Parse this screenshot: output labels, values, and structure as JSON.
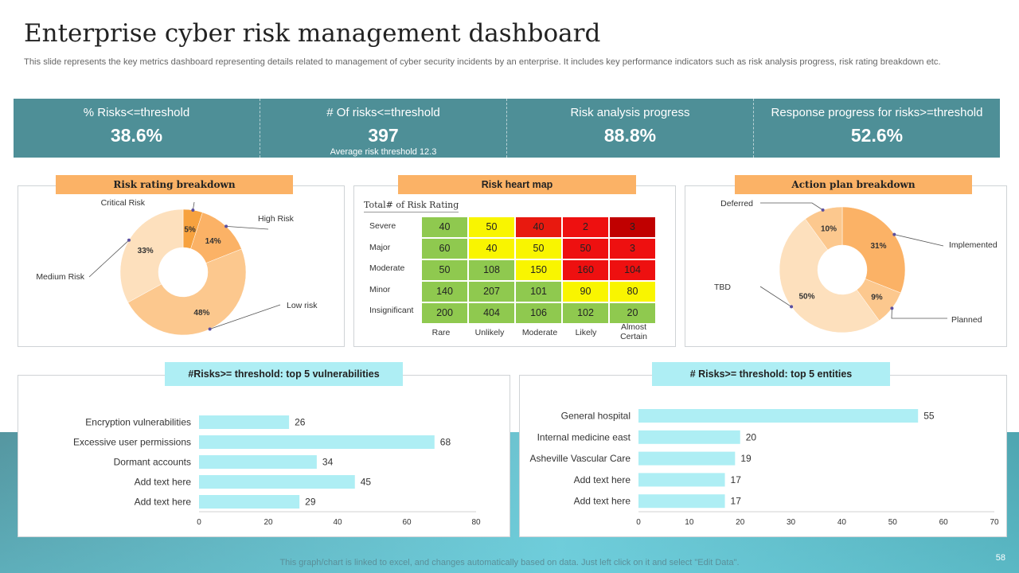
{
  "title": "Enterprise cyber risk management dashboard",
  "subtitle": "This slide represents the key metrics dashboard representing details related to management of cyber security incidents by an enterprise. It includes key performance indicators such as risk analysis progress, risk rating breakdown etc.",
  "kpis": [
    {
      "label": "% Risks<=threshold",
      "value": "38.6%",
      "note": ""
    },
    {
      "label": "# Of risks<=threshold",
      "value": "397",
      "note": "Average risk threshold 12.3"
    },
    {
      "label": "Risk analysis progress",
      "value": "88.8%",
      "note": ""
    },
    {
      "label": "Response progress for risks>=threshold",
      "value": "52.6%",
      "note": ""
    }
  ],
  "panels": {
    "risk_rating": "Risk rating breakdown",
    "heat_map": "Risk heart map",
    "action_plan": "Action plan breakdown",
    "vulnerabilities": "#Risks>= threshold: top 5 vulnerabilities",
    "entities": "# Risks>=  threshold: top 5 entities"
  },
  "footer_note": "This graph/chart is linked to excel,  and changes automatically based on data. Just left click on it and select \"Edit Data\".",
  "page_number": "58",
  "colors": {
    "kpi_bg": "#4e8f97",
    "orange_tag": "#fbb266",
    "cyan_tag": "#aeeef4",
    "bar": "#aeeef4"
  },
  "chart_data": [
    {
      "type": "pie",
      "variant": "donut",
      "labels": [
        "Critical Risk",
        "High Risk",
        "Low risk",
        "Medium Risk"
      ],
      "values": [
        5,
        14,
        48,
        33
      ],
      "value_labels": [
        "5%",
        "14%",
        "48%",
        "33%"
      ],
      "colors": [
        "#f7a23f",
        "#fbb266",
        "#fcc88e",
        "#fde0bd"
      ]
    },
    {
      "type": "heatmap",
      "title": "Total# of Risk Rating",
      "rows": [
        "Severe",
        "Major",
        "Moderate",
        "Minor",
        "Insignificant"
      ],
      "columns": [
        "Rare",
        "Unlikely",
        "Moderate",
        "Likely",
        "Almost Certain"
      ],
      "values": [
        [
          40,
          50,
          40,
          2,
          3
        ],
        [
          60,
          40,
          50,
          50,
          3
        ],
        [
          50,
          108,
          150,
          160,
          104
        ],
        [
          140,
          207,
          101,
          90,
          80
        ],
        [
          200,
          404,
          106,
          102,
          20
        ]
      ],
      "cell_colors": [
        [
          "#8fc94f",
          "#f9f500",
          "#e8190f",
          "#ee1010",
          "#c00000"
        ],
        [
          "#8fc94f",
          "#f9f500",
          "#f9f500",
          "#ee1010",
          "#ee1010"
        ],
        [
          "#8fc94f",
          "#8fc94f",
          "#f9f500",
          "#ee1010",
          "#ee1010"
        ],
        [
          "#8fc94f",
          "#8fc94f",
          "#8fc94f",
          "#f9f500",
          "#f9f500"
        ],
        [
          "#8fc94f",
          "#8fc94f",
          "#8fc94f",
          "#8fc94f",
          "#8fc94f"
        ]
      ]
    },
    {
      "type": "pie",
      "variant": "donut",
      "labels": [
        "Implemented",
        "Planned",
        "TBD",
        "Deferred"
      ],
      "values": [
        31,
        9,
        50,
        10
      ],
      "value_labels": [
        "31%",
        "9%",
        "50%",
        "10%"
      ],
      "colors": [
        "#fbb266",
        "#fcc88e",
        "#fde0bd",
        "#fcc88e"
      ]
    },
    {
      "type": "bar",
      "orientation": "horizontal",
      "categories": [
        "Encryption vulnerabilities",
        "Excessive user permissions",
        "Dormant accounts",
        "Add text here",
        "Add text here"
      ],
      "values": [
        26,
        68,
        34,
        45,
        29
      ],
      "xlim": [
        0,
        80
      ],
      "ticks": [
        0,
        20,
        40,
        60,
        80
      ]
    },
    {
      "type": "bar",
      "orientation": "horizontal",
      "categories": [
        "General hospital",
        "Internal medicine east",
        "Asheville Vascular Care",
        "Add text here",
        "Add text here"
      ],
      "values": [
        55,
        20,
        19,
        17,
        17
      ],
      "xlim": [
        0,
        70
      ],
      "ticks": [
        0,
        10,
        20,
        30,
        40,
        50,
        60,
        70
      ]
    }
  ]
}
